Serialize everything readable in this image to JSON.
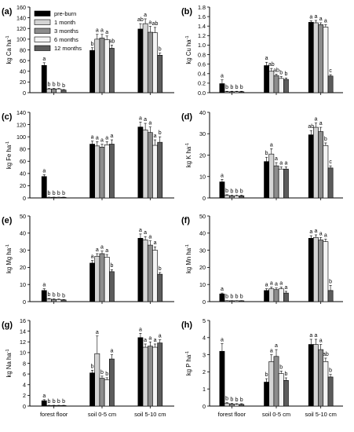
{
  "categories": [
    "forest floor",
    "soil 0-5 cm",
    "soil 5-10 cm"
  ],
  "legend": {
    "entries": [
      "pre-burn",
      "1 month",
      "3 months",
      "6 months",
      "12 months"
    ],
    "colors": [
      "#000000",
      "#d4d4d4",
      "#8c8c8c",
      "#f4f4f4",
      "#5c5c5c"
    ]
  },
  "chart_data": [
    {
      "id": "a",
      "panel_label": "(a)",
      "type": "bar",
      "ylabel": "kg Ca ha",
      "ylabel_sup": "-1",
      "ylim": [
        0,
        160
      ],
      "yticks": [
        0,
        20,
        40,
        60,
        80,
        100,
        120,
        140,
        160
      ],
      "categories": [
        "forest floor",
        "soil 0-5 cm",
        "soil 5-10 cm"
      ],
      "series": [
        {
          "name": "pre-burn",
          "values": [
            51,
            79,
            119
          ],
          "errors": [
            5,
            5,
            10
          ],
          "letters": [
            "a",
            "b",
            "ab"
          ]
        },
        {
          "name": "1 month",
          "values": [
            7,
            100,
            129
          ],
          "errors": [
            1,
            9,
            9
          ],
          "letters": [
            "b",
            "a",
            "a"
          ]
        },
        {
          "name": "3 months",
          "values": [
            7,
            102,
            113
          ],
          "errors": [
            1,
            7,
            11
          ],
          "letters": [
            "b",
            "a",
            "a"
          ]
        },
        {
          "name": "6 months",
          "values": [
            7,
            99,
            112
          ],
          "errors": [
            1,
            7,
            10
          ],
          "letters": [
            "b",
            "a",
            "ab"
          ]
        },
        {
          "name": "12 months",
          "values": [
            5,
            83,
            70
          ],
          "errors": [
            1,
            6,
            4
          ],
          "letters": [
            "b",
            "ab",
            "b"
          ]
        }
      ]
    },
    {
      "id": "b",
      "panel_label": "(b)",
      "type": "bar",
      "ylabel": "kg Cu ha",
      "ylabel_sup": "-1",
      "ylim": [
        0,
        1.8
      ],
      "yticks": [
        0,
        0.2,
        0.4,
        0.6,
        0.8,
        1.0,
        1.2,
        1.4,
        1.6,
        1.8
      ],
      "categories": [
        "forest floor",
        "soil 0-5 cm",
        "soil 5-10 cm"
      ],
      "series": [
        {
          "name": "pre-burn",
          "values": [
            0.19,
            0.57,
            1.48
          ],
          "errors": [
            0.08,
            0.07,
            0.03
          ],
          "letters": [
            "a",
            "a",
            "a"
          ]
        },
        {
          "name": "1 month",
          "values": [
            0.02,
            0.45,
            1.47
          ],
          "errors": [
            0.01,
            0.06,
            0.05
          ],
          "letters": [
            "b",
            "ab",
            "a"
          ]
        },
        {
          "name": "3 months",
          "values": [
            0.02,
            0.36,
            1.43
          ],
          "errors": [
            0.01,
            0.03,
            0.04
          ],
          "letters": [
            "b",
            "ab",
            "a"
          ]
        },
        {
          "name": "6 months",
          "values": [
            0.02,
            0.3,
            1.38
          ],
          "errors": [
            0.01,
            0.04,
            0.05
          ],
          "letters": [
            "b",
            "b",
            "a"
          ]
        },
        {
          "name": "12 months",
          "values": [
            0.02,
            0.28,
            0.35
          ],
          "errors": [
            0.01,
            0.03,
            0.03
          ],
          "letters": [
            "b",
            "b",
            "c"
          ]
        }
      ]
    },
    {
      "id": "c",
      "panel_label": "(c)",
      "type": "bar",
      "ylabel": "kg Fe ha",
      "ylabel_sup": "-1",
      "ylim": [
        0,
        140
      ],
      "yticks": [
        0,
        20,
        40,
        60,
        80,
        100,
        120,
        140
      ],
      "categories": [
        "forest floor",
        "soil 0-5 cm",
        "soil 5-10 cm"
      ],
      "series": [
        {
          "name": "pre-burn",
          "values": [
            35,
            88,
            116
          ],
          "errors": [
            3,
            5,
            8
          ],
          "letters": [
            "a",
            "a",
            "a"
          ]
        },
        {
          "name": "1 month",
          "values": [
            1,
            85,
            111
          ],
          "errors": [
            0.3,
            7,
            11
          ],
          "letters": [
            "b",
            "a",
            "a"
          ]
        },
        {
          "name": "3 months",
          "values": [
            1,
            83,
            107
          ],
          "errors": [
            0.3,
            5,
            9
          ],
          "letters": [
            "b",
            "a",
            "a"
          ]
        },
        {
          "name": "6 months",
          "values": [
            1,
            87,
            86
          ],
          "errors": [
            0.3,
            5,
            9
          ],
          "letters": [
            "b",
            "a",
            "a"
          ]
        },
        {
          "name": "12 months",
          "values": [
            1,
            88,
            91
          ],
          "errors": [
            0.3,
            7,
            9
          ],
          "letters": [
            "b",
            "a",
            "b"
          ]
        }
      ]
    },
    {
      "id": "d",
      "panel_label": "(d)",
      "type": "bar",
      "ylabel": "kg K ha",
      "ylabel_sup": "-1",
      "ylim": [
        0,
        40
      ],
      "yticks": [
        0,
        10,
        20,
        30,
        40
      ],
      "categories": [
        "forest floor",
        "soil 0-5 cm",
        "soil 5-10 cm"
      ],
      "series": [
        {
          "name": "pre-burn",
          "values": [
            7.5,
            17,
            29.5
          ],
          "errors": [
            1.2,
            2,
            2
          ],
          "letters": [
            "a",
            "b",
            "ab"
          ]
        },
        {
          "name": "1 month",
          "values": [
            1.2,
            20.5,
            33
          ],
          "errors": [
            0.3,
            2.5,
            2
          ],
          "letters": [
            "b",
            "a",
            "a"
          ]
        },
        {
          "name": "3 months",
          "values": [
            1.0,
            15,
            31
          ],
          "errors": [
            0.3,
            1.5,
            2
          ],
          "letters": [
            "b",
            "a",
            "a"
          ]
        },
        {
          "name": "6 months",
          "values": [
            1.0,
            13.5,
            24.5
          ],
          "errors": [
            0.3,
            1,
            1.2
          ],
          "letters": [
            "b",
            "a",
            "b"
          ]
        },
        {
          "name": "12 months",
          "values": [
            1.0,
            13.5,
            14
          ],
          "errors": [
            0.3,
            1,
            1
          ],
          "letters": [
            "b",
            "a",
            "c"
          ]
        }
      ]
    },
    {
      "id": "e",
      "panel_label": "(e)",
      "type": "bar",
      "ylabel": "kg Mg ha",
      "ylabel_sup": "-1",
      "ylim": [
        0,
        50
      ],
      "yticks": [
        0,
        10,
        20,
        30,
        40,
        50
      ],
      "categories": [
        "forest floor",
        "soil 0-5 cm",
        "soil 5-10 cm"
      ],
      "series": [
        {
          "name": "pre-burn",
          "values": [
            6.5,
            22.5,
            37
          ],
          "errors": [
            1,
            1.5,
            2.5
          ],
          "letters": [
            "a",
            "a",
            "a"
          ]
        },
        {
          "name": "1 month",
          "values": [
            1.5,
            26.5,
            36
          ],
          "errors": [
            0.3,
            1.5,
            2
          ],
          "letters": [
            "b",
            "a",
            "a"
          ]
        },
        {
          "name": "3 months",
          "values": [
            1.3,
            28,
            33
          ],
          "errors": [
            0.3,
            1.5,
            2.5
          ],
          "letters": [
            "b",
            "a",
            "a"
          ]
        },
        {
          "name": "6 months",
          "values": [
            1.2,
            26,
            30
          ],
          "errors": [
            0.3,
            1.5,
            2
          ],
          "letters": [
            "b",
            "a",
            "a"
          ]
        },
        {
          "name": "12 months",
          "values": [
            1.0,
            17.5,
            16
          ],
          "errors": [
            0.2,
            1.2,
            1
          ],
          "letters": [
            "b",
            "b",
            "b"
          ]
        }
      ]
    },
    {
      "id": "f",
      "panel_label": "(f)",
      "type": "bar",
      "ylabel": "kg Mn ha",
      "ylabel_sup": "-1",
      "ylim": [
        0,
        50
      ],
      "yticks": [
        0,
        10,
        20,
        30,
        40,
        50
      ],
      "categories": [
        "forest floor",
        "soil 0-5 cm",
        "soil 5-10 cm"
      ],
      "series": [
        {
          "name": "pre-burn",
          "values": [
            4.5,
            6.5,
            37
          ],
          "errors": [
            0.5,
            1,
            1.5
          ],
          "letters": [
            "a",
            "a",
            "a"
          ]
        },
        {
          "name": "1 month",
          "values": [
            0.5,
            7.5,
            37.5
          ],
          "errors": [
            0.1,
            1,
            1.5
          ],
          "letters": [
            "b",
            "a",
            "a"
          ]
        },
        {
          "name": "3 months",
          "values": [
            0.5,
            7,
            36
          ],
          "errors": [
            0.1,
            1,
            1.5
          ],
          "letters": [
            "b",
            "a",
            "a"
          ]
        },
        {
          "name": "6 months",
          "values": [
            0.5,
            7.5,
            35
          ],
          "errors": [
            0.1,
            1,
            1.5
          ],
          "letters": [
            "b",
            "a",
            "a"
          ]
        },
        {
          "name": "12 months",
          "values": [
            0.5,
            5,
            6.5
          ],
          "errors": [
            0.1,
            1,
            3
          ],
          "letters": [
            "b",
            "a",
            "b"
          ]
        }
      ]
    },
    {
      "id": "g",
      "panel_label": "(g)",
      "type": "bar",
      "ylabel": "kg Na ha",
      "ylabel_sup": "-1",
      "ylim": [
        0,
        16
      ],
      "yticks": [
        0,
        2,
        4,
        6,
        8,
        10,
        12,
        14,
        16
      ],
      "categories": [
        "forest floor",
        "soil 0-5 cm",
        "soil 5-10 cm"
      ],
      "series": [
        {
          "name": "pre-burn",
          "values": [
            1.0,
            6.2,
            12.8
          ],
          "errors": [
            0.2,
            0.5,
            0.8
          ],
          "letters": [
            "a",
            "b",
            "a"
          ]
        },
        {
          "name": "1 month",
          "values": [
            0.1,
            9.8,
            11.0
          ],
          "errors": [
            0.05,
            3.3,
            0.6
          ],
          "letters": [
            "b",
            "a",
            "a"
          ]
        },
        {
          "name": "3 months",
          "values": [
            0.1,
            5.2,
            11.2
          ],
          "errors": [
            0.05,
            0.4,
            0.8
          ],
          "letters": [
            "b",
            "b",
            "a"
          ]
        },
        {
          "name": "6 months",
          "values": [
            0.1,
            4.9,
            11.0
          ],
          "errors": [
            0.05,
            0.4,
            0.6
          ],
          "letters": [
            "b",
            "b",
            "a"
          ]
        },
        {
          "name": "12 months",
          "values": [
            0.1,
            8.8,
            11.8
          ],
          "errors": [
            0.05,
            0.8,
            0.6
          ],
          "letters": [
            "b",
            "a",
            "a"
          ]
        }
      ]
    },
    {
      "id": "h",
      "panel_label": "(h)",
      "type": "bar",
      "ylabel": "kg P ha",
      "ylabel_sup": "-1",
      "ylim": [
        0,
        5
      ],
      "yticks": [
        0,
        1,
        2,
        3,
        4,
        5
      ],
      "categories": [
        "forest floor",
        "soil 0-5 cm",
        "soil 5-10 cm"
      ],
      "series": [
        {
          "name": "pre-burn",
          "values": [
            3.2,
            1.4,
            3.6
          ],
          "errors": [
            0.45,
            0.2,
            0.3
          ],
          "letters": [
            "a",
            "b",
            "a"
          ]
        },
        {
          "name": "1 month",
          "values": [
            0.15,
            2.6,
            3.6
          ],
          "errors": [
            0.05,
            0.4,
            0.3
          ],
          "letters": [
            "b",
            "a",
            "a"
          ]
        },
        {
          "name": "3 months",
          "values": [
            0.12,
            2.9,
            3.3
          ],
          "errors": [
            0.04,
            0.4,
            0.3
          ],
          "letters": [
            "b",
            "a",
            "a"
          ]
        },
        {
          "name": "6 months",
          "values": [
            0.1,
            1.9,
            2.6
          ],
          "errors": [
            0.04,
            0.15,
            0.2
          ],
          "letters": [
            "b",
            "b",
            "ab"
          ]
        },
        {
          "name": "12 months",
          "values": [
            0.1,
            1.5,
            1.7
          ],
          "errors": [
            0.04,
            0.15,
            0.15
          ],
          "letters": [
            "b",
            "b",
            "b"
          ]
        }
      ]
    }
  ]
}
